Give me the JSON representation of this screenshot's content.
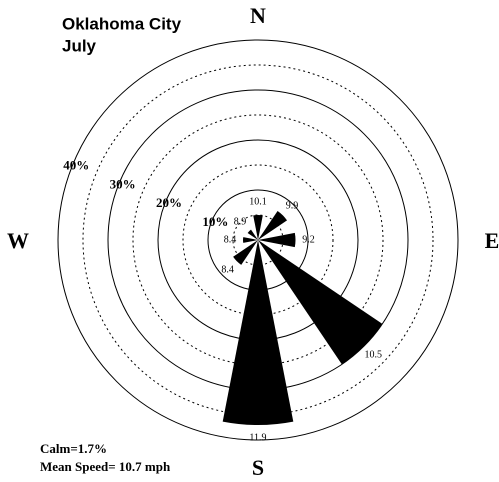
{
  "chart_data": {
    "type": "windrose",
    "title": "Oklahoma City",
    "subtitle": "July",
    "compass": [
      "N",
      "E",
      "S",
      "W"
    ],
    "x": [
      0,
      45,
      90,
      135,
      180,
      225,
      270,
      315
    ],
    "values": [
      5,
      7,
      7.5,
      30,
      37,
      6,
      3,
      2.5
    ],
    "speeds": [
      10.1,
      9.9,
      9.2,
      10.5,
      11.9,
      8.4,
      8.4,
      8.9
    ],
    "color": "#000000",
    "rlim": [
      0,
      40
    ],
    "rticks": [
      {
        "value": 10,
        "label": "10%"
      },
      {
        "value": 20,
        "label": "20%"
      },
      {
        "value": 30,
        "label": "30%"
      },
      {
        "value": 40,
        "label": "40%"
      }
    ],
    "rminor_ticks": [
      5,
      15,
      25,
      35
    ],
    "annotations": [
      "Calm=1.7%",
      "Mean Speed= 10.7 mph"
    ]
  }
}
